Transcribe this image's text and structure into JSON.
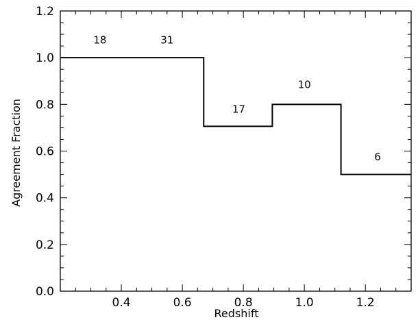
{
  "chart_data": {
    "type": "line",
    "step": "post",
    "xlabel": "Redshift",
    "ylabel": "Agreement Fraction",
    "xlim": [
      0.2,
      1.35
    ],
    "ylim": [
      0.0,
      1.2
    ],
    "xticks": [
      "0.4",
      "0.6",
      "0.8",
      "1.0",
      "1.2"
    ],
    "yticks": [
      "0.0",
      "0.2",
      "0.4",
      "0.6",
      "0.8",
      "1.0",
      "1.2"
    ],
    "grid": false,
    "series": [
      {
        "bins": [
          {
            "x0": 0.2,
            "x1": 0.44,
            "y": 1.0
          },
          {
            "x0": 0.44,
            "x1": 0.67,
            "y": 1.0
          },
          {
            "x0": 0.67,
            "x1": 0.895,
            "y": 0.706
          },
          {
            "x0": 0.895,
            "x1": 1.12,
            "y": 0.8
          },
          {
            "x0": 1.12,
            "x1": 1.35,
            "y": 0.5
          }
        ]
      }
    ],
    "annotations": [
      {
        "text": "18",
        "x": 0.33,
        "y": 1.06
      },
      {
        "text": "31",
        "x": 0.55,
        "y": 1.06
      },
      {
        "text": "17",
        "x": 0.785,
        "y": 0.765
      },
      {
        "text": "10",
        "x": 1.0,
        "y": 0.87
      },
      {
        "text": "6",
        "x": 1.24,
        "y": 0.56
      }
    ]
  }
}
